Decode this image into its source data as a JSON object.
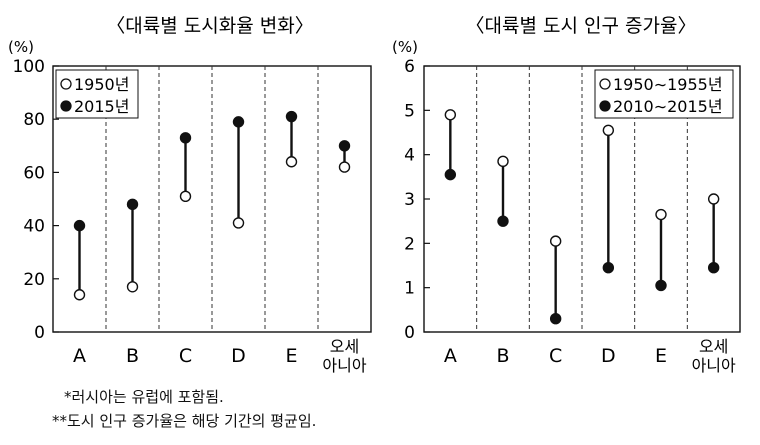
{
  "chart_data": [
    {
      "type": "dumbbell",
      "title": "〈대륙별 도시화율 변화〉",
      "ylabel": "(%)",
      "ylim": [
        0,
        100
      ],
      "yticks": [
        0,
        20,
        40,
        60,
        80,
        100
      ],
      "categories": [
        "A",
        "B",
        "C",
        "D",
        "E",
        "오세\n아니아"
      ],
      "series": [
        {
          "name": "1950년",
          "marker": "open",
          "values": [
            14,
            17,
            51,
            41,
            64,
            62
          ]
        },
        {
          "name": "2015년",
          "marker": "filled",
          "values": [
            40,
            48,
            73,
            79,
            81,
            70
          ]
        }
      ]
    },
    {
      "type": "dumbbell",
      "title": "〈대륙별 도시 인구 증가율〉",
      "ylabel": "(%)",
      "ylim": [
        0,
        6
      ],
      "yticks": [
        0,
        1,
        2,
        3,
        4,
        5,
        6
      ],
      "categories": [
        "A",
        "B",
        "C",
        "D",
        "E",
        "오세\n아니아"
      ],
      "series": [
        {
          "name": "1950∼1955년",
          "marker": "open",
          "values": [
            4.9,
            3.85,
            2.05,
            4.55,
            2.65,
            3.0
          ]
        },
        {
          "name": "2010∼2015년",
          "marker": "filled",
          "values": [
            3.55,
            2.5,
            0.3,
            1.45,
            1.05,
            1.45
          ]
        }
      ]
    }
  ],
  "notes": {
    "note1": "*러시아는 유럽에 포함됨.",
    "note2": "**도시 인구 증가율은 해당 기간의 평균임."
  }
}
